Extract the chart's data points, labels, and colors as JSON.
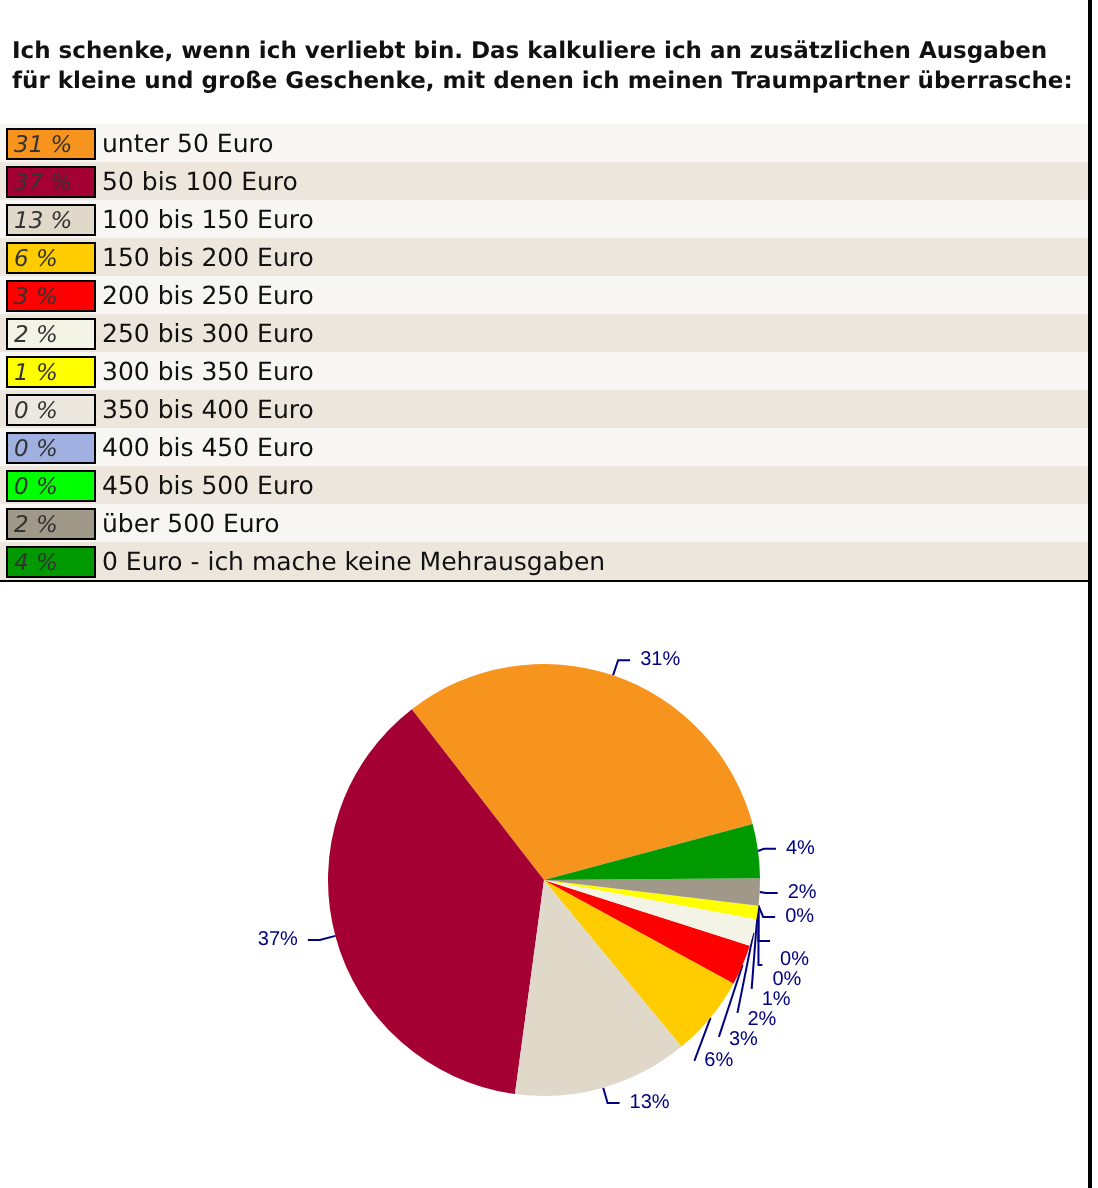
{
  "chart_data": {
    "type": "pie",
    "title": "Ich schenke, wenn ich verliebt bin. Das kalkuliere ich an zusätzlichen Ausgaben für kleine und große Geschenke, mit denen ich meinen Traumpartner überrasche:",
    "categories": [
      "unter 50 Euro",
      "50 bis 100 Euro",
      "100 bis 150 Euro",
      "150 bis 200 Euro",
      "200 bis 250 Euro",
      "250 bis 300 Euro",
      "300 bis 350 Euro",
      "350 bis 400 Euro",
      "400 bis 450 Euro",
      "450 bis 500 Euro",
      "über 500 Euro",
      "0 Euro - ich mache keine Mehrausgaben"
    ],
    "values": [
      31,
      37,
      13,
      6,
      3,
      2,
      1,
      0,
      0,
      0,
      2,
      4
    ],
    "value_labels": [
      "31 %",
      "37 %",
      "13 %",
      "6 %",
      "3 %",
      "2 %",
      "1 %",
      "0 %",
      "0 %",
      "0 %",
      "2 %",
      "4 %"
    ],
    "colors": [
      "#f7941d",
      "#a50034",
      "#e0d8c8",
      "#ffcc00",
      "#ff0000",
      "#f4f4e6",
      "#ffff00",
      "#ece8e0",
      "#a0b0e0",
      "#00ff00",
      "#a09888",
      "#009900"
    ],
    "legend": "top"
  }
}
